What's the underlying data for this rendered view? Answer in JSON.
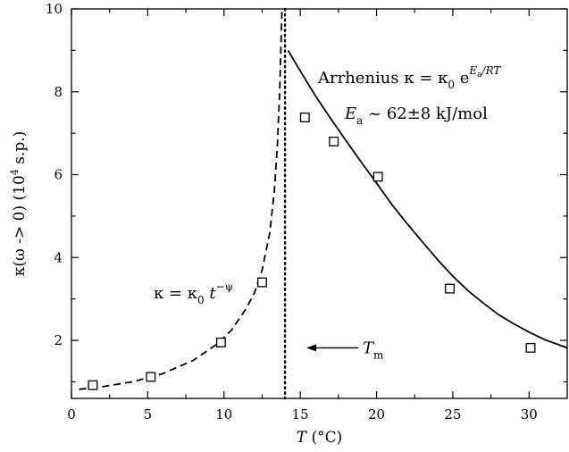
{
  "chart_data": {
    "type": "scatter",
    "title": "",
    "xlabel": "",
    "ylabel": "",
    "xlabel_parts": {
      "symbol": "T",
      "unit": " (°C)"
    },
    "ylabel_parts": {
      "main": "κ(ω -> 0) (10",
      "sup": "4",
      "tail": " s.p.)"
    },
    "xlim": [
      0,
      32.5
    ],
    "ylim": [
      0.6,
      10
    ],
    "x_ticks": [
      0,
      5,
      10,
      15,
      20,
      25,
      30
    ],
    "y_ticks": [
      2,
      4,
      6,
      8,
      10
    ],
    "x_tick_labels": [
      "0",
      "5",
      "10",
      "15",
      "20",
      "25",
      "30"
    ],
    "y_tick_labels": [
      "2",
      "4",
      "6",
      "8",
      "10"
    ],
    "grid": false,
    "series": [
      {
        "marker": "open-square",
        "points": [
          [
            1.4,
            0.92
          ],
          [
            5.2,
            1.12
          ],
          [
            9.8,
            1.95
          ],
          [
            12.5,
            3.4
          ],
          [
            15.3,
            7.38
          ],
          [
            17.2,
            6.8
          ],
          [
            20.1,
            5.95
          ],
          [
            24.8,
            3.25
          ],
          [
            30.1,
            1.82
          ]
        ]
      }
    ],
    "fits": [
      {
        "style": "dashed",
        "form": "power-law",
        "equation": {
          "lhs": "κ = κ",
          "sub": "0",
          "var": "t",
          "sup": "−ψ"
        },
        "x_range": [
          0.5,
          13.8
        ],
        "points": [
          [
            0.5,
            0.82
          ],
          [
            2,
            0.88
          ],
          [
            4,
            1.0
          ],
          [
            6,
            1.2
          ],
          [
            8,
            1.52
          ],
          [
            9.5,
            1.9
          ],
          [
            10.5,
            2.25
          ],
          [
            11.5,
            2.8
          ],
          [
            12,
            3.15
          ],
          [
            12.5,
            3.7
          ],
          [
            13,
            4.6
          ],
          [
            13.3,
            5.6
          ],
          [
            13.5,
            6.7
          ],
          [
            13.65,
            8.0
          ],
          [
            13.75,
            9.3
          ],
          [
            13.8,
            10.0
          ]
        ]
      },
      {
        "style": "solid",
        "form": "arrhenius",
        "equation": {
          "prefix": "Arrhenius κ = κ",
          "sub": "0",
          "mid": " e",
          "sup_a": "E",
          "sup_a_sub": "a",
          "sup_b": "/RT"
        },
        "activation": {
          "var": "E",
          "sub": "a",
          "text": " ~ 62±8 kJ/mol"
        },
        "x_range": [
          14.2,
          32.5
        ],
        "points": [
          [
            14.2,
            9.0
          ],
          [
            15,
            8.5
          ],
          [
            16,
            7.9
          ],
          [
            17,
            7.35
          ],
          [
            18,
            6.82
          ],
          [
            19,
            6.3
          ],
          [
            20,
            5.8
          ],
          [
            21,
            5.28
          ],
          [
            22,
            4.82
          ],
          [
            23,
            4.38
          ],
          [
            24,
            3.95
          ],
          [
            25,
            3.55
          ],
          [
            26,
            3.2
          ],
          [
            27,
            2.9
          ],
          [
            28,
            2.62
          ],
          [
            29,
            2.4
          ],
          [
            30,
            2.2
          ],
          [
            31,
            2.02
          ],
          [
            32.5,
            1.82
          ]
        ]
      }
    ],
    "transition": {
      "x": 14.0,
      "style": "dotted",
      "label": {
        "symbol": "T",
        "sub": "m"
      },
      "arrow_tail": [
        18.8,
        1.82
      ],
      "arrow_head": [
        15.4,
        1.82
      ]
    }
  }
}
